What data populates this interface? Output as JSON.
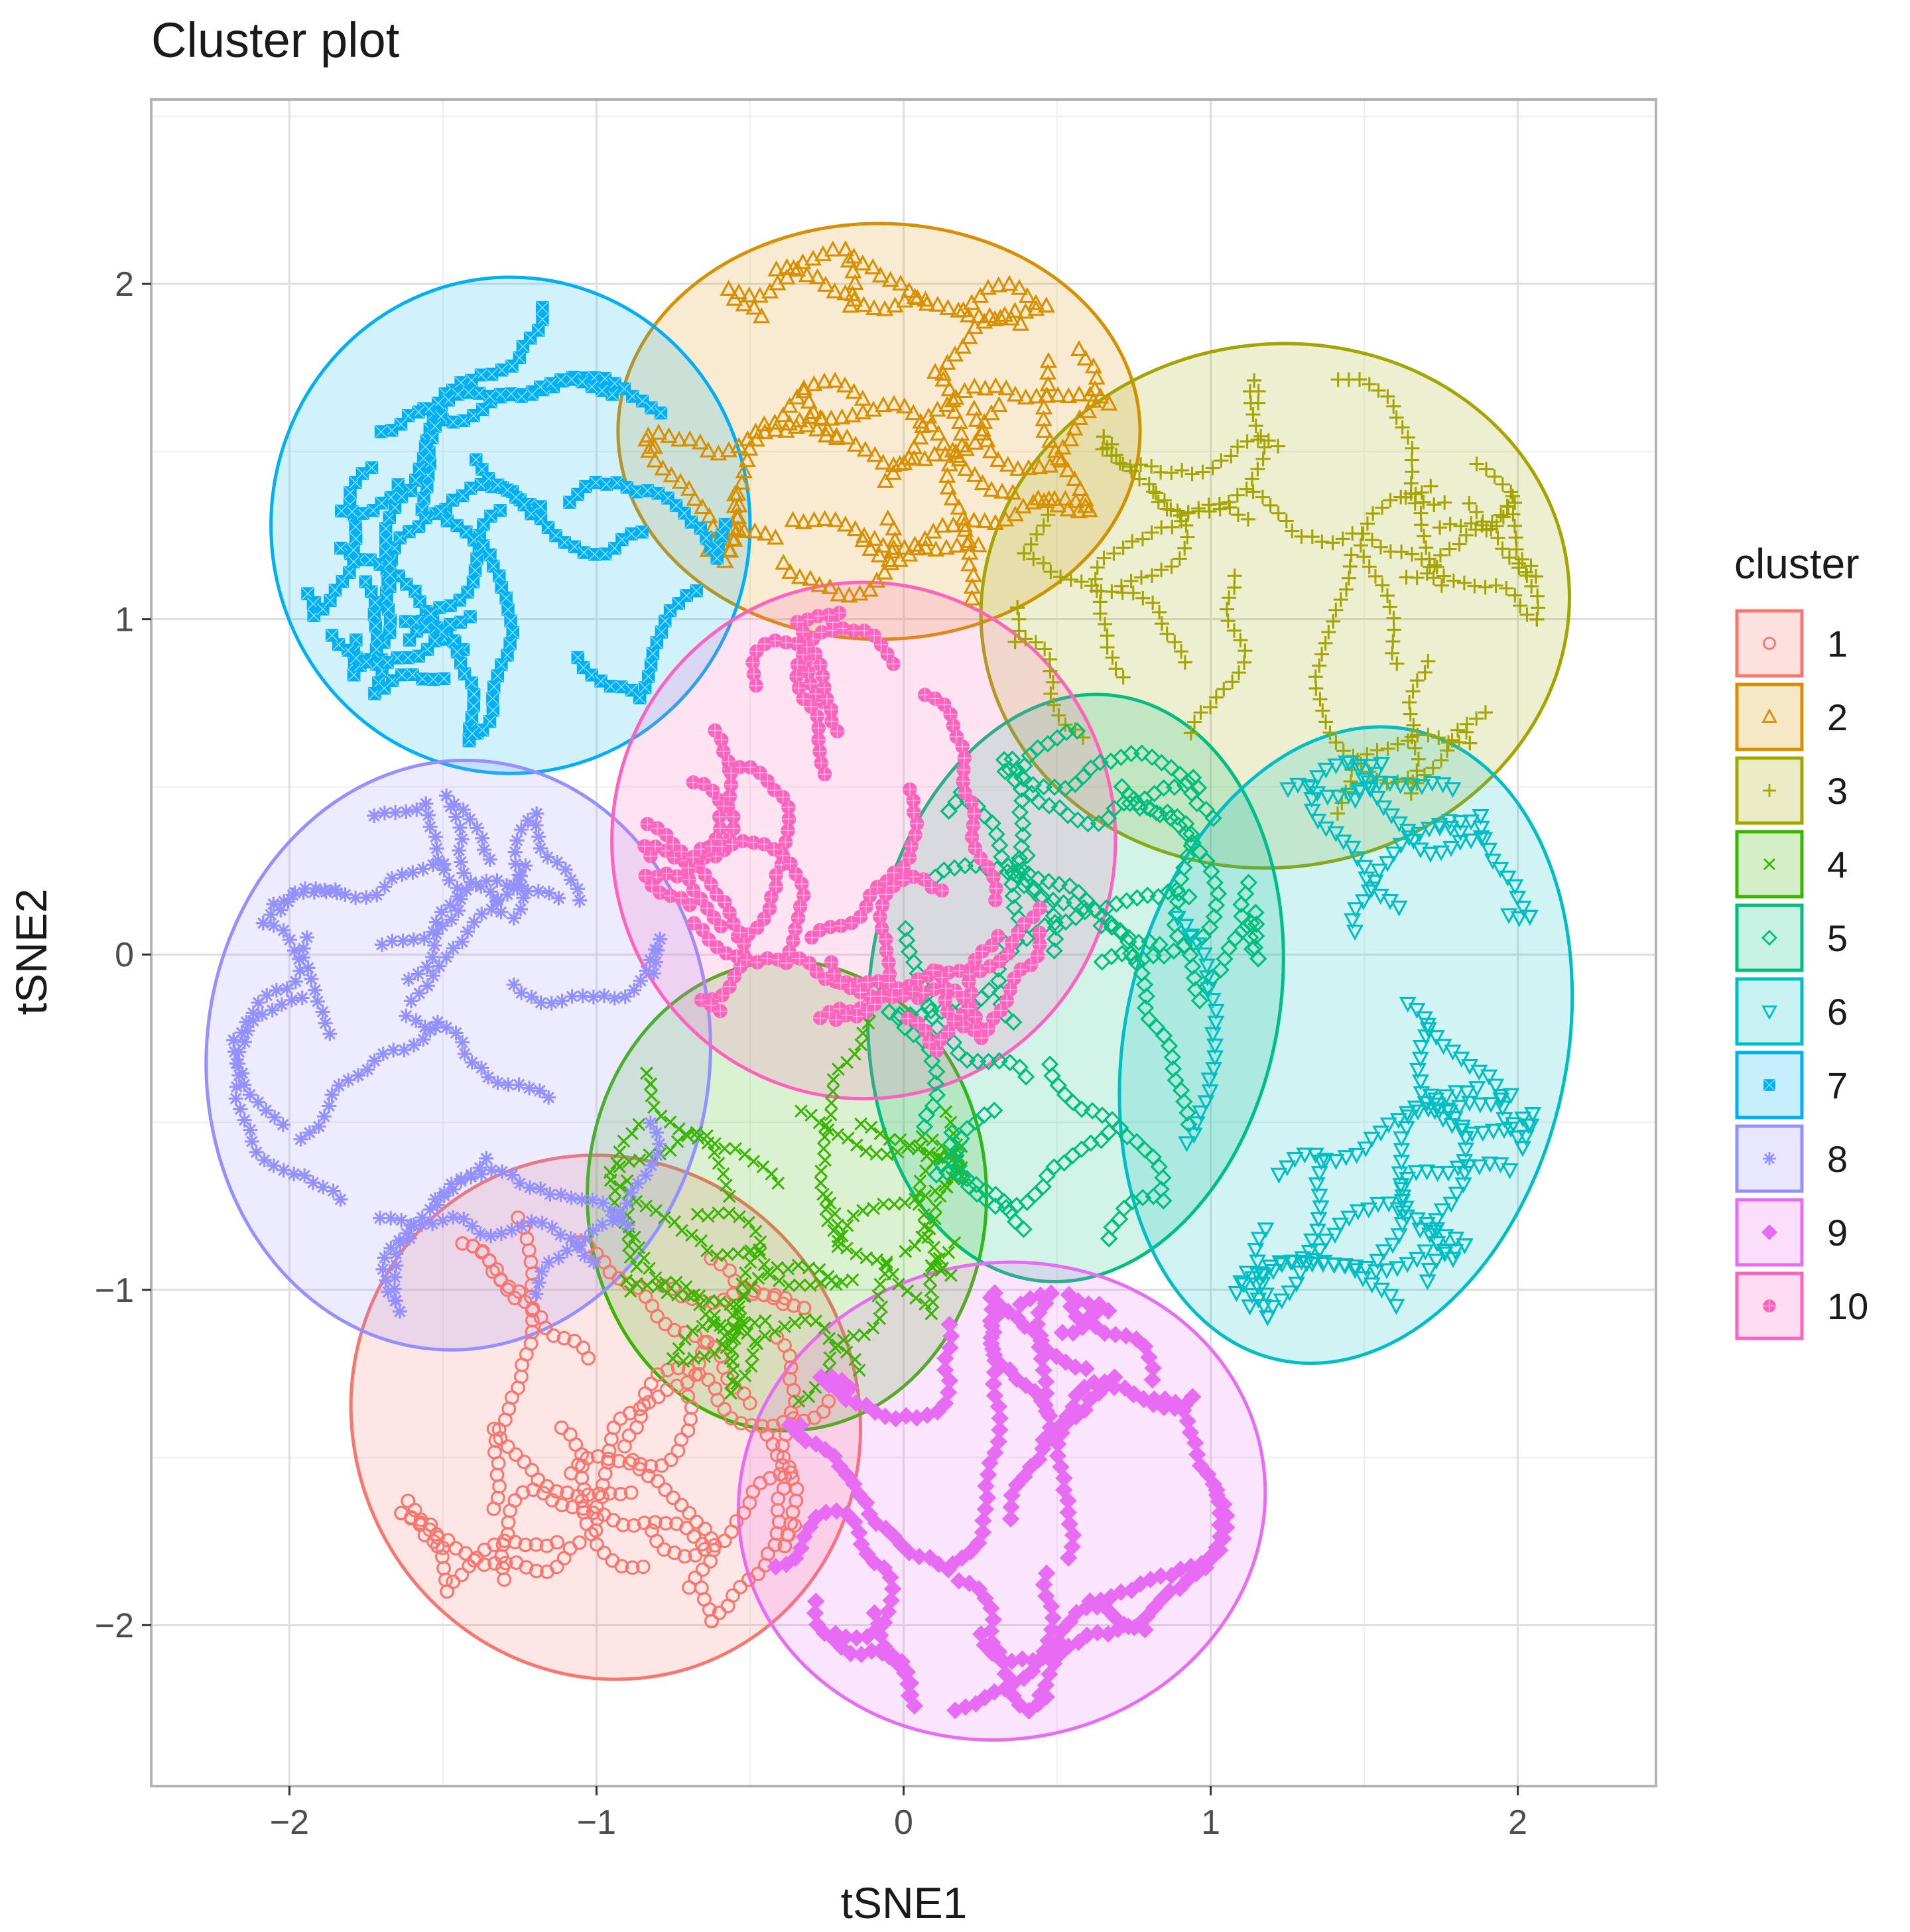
{
  "chart_data": {
    "type": "scatter",
    "title": "Cluster plot",
    "xlabel": "tSNE1",
    "ylabel": "tSNE2",
    "xlim": [
      -2.45,
      2.45
    ],
    "ylim": [
      -2.48,
      2.55
    ],
    "x_ticks": [
      {
        "value": -2,
        "label": "−2"
      },
      {
        "value": -1,
        "label": "−1"
      },
      {
        "value": 0,
        "label": "0"
      },
      {
        "value": 1,
        "label": "1"
      },
      {
        "value": 2,
        "label": "2"
      }
    ],
    "y_ticks": [
      {
        "value": -2,
        "label": "−2"
      },
      {
        "value": -1,
        "label": "−1"
      },
      {
        "value": 0,
        "label": "0"
      },
      {
        "value": 1,
        "label": "1"
      },
      {
        "value": 2,
        "label": "2"
      }
    ],
    "grid": true,
    "legend": {
      "title": "cluster",
      "position": "right"
    },
    "series": [
      {
        "name": "1",
        "color": "#F8766D",
        "shape": "circle",
        "center": [
          -0.97,
          -1.38
        ],
        "ellipse": {
          "rx": 0.82,
          "ry": 0.79,
          "angle": -28
        }
      },
      {
        "name": "2",
        "color": "#D89000",
        "shape": "triangle",
        "center": [
          -0.08,
          1.56
        ],
        "ellipse": {
          "rx": 0.85,
          "ry": 0.62,
          "angle": 0
        }
      },
      {
        "name": "3",
        "color": "#A3A500",
        "shape": "plus",
        "center": [
          1.21,
          1.04
        ],
        "ellipse": {
          "rx": 0.96,
          "ry": 0.78,
          "angle": -8
        }
      },
      {
        "name": "4",
        "color": "#39B600",
        "shape": "cross",
        "center": [
          -0.38,
          -0.72
        ],
        "ellipse": {
          "rx": 0.65,
          "ry": 0.7,
          "angle": 0
        }
      },
      {
        "name": "5",
        "color": "#00BF7D",
        "shape": "diamond-open",
        "center": [
          0.56,
          -0.1
        ],
        "ellipse": {
          "rx": 0.67,
          "ry": 0.88,
          "angle": 8
        }
      },
      {
        "name": "6",
        "color": "#00BFC4",
        "shape": "triangle-down",
        "center": [
          1.44,
          -0.27
        ],
        "ellipse": {
          "rx": 0.72,
          "ry": 0.96,
          "angle": 12
        }
      },
      {
        "name": "7",
        "color": "#00B0F6",
        "shape": "square-cross",
        "center": [
          -1.28,
          1.28
        ],
        "ellipse": {
          "rx": 0.78,
          "ry": 0.74,
          "angle": 0
        }
      },
      {
        "name": "8",
        "color": "#9590FF",
        "shape": "asterisk",
        "center": [
          -1.45,
          -0.3
        ],
        "ellipse": {
          "rx": 0.82,
          "ry": 0.88,
          "angle": 5
        }
      },
      {
        "name": "9",
        "color": "#E76BF3",
        "shape": "diamond",
        "center": [
          0.32,
          -1.63
        ],
        "ellipse": {
          "rx": 0.86,
          "ry": 0.71,
          "angle": -10
        }
      },
      {
        "name": "10",
        "color": "#FF62BC",
        "shape": "circle-plus",
        "center": [
          -0.13,
          0.34
        ],
        "ellipse": {
          "rx": 0.82,
          "ry": 0.77,
          "angle": 0
        }
      }
    ]
  }
}
